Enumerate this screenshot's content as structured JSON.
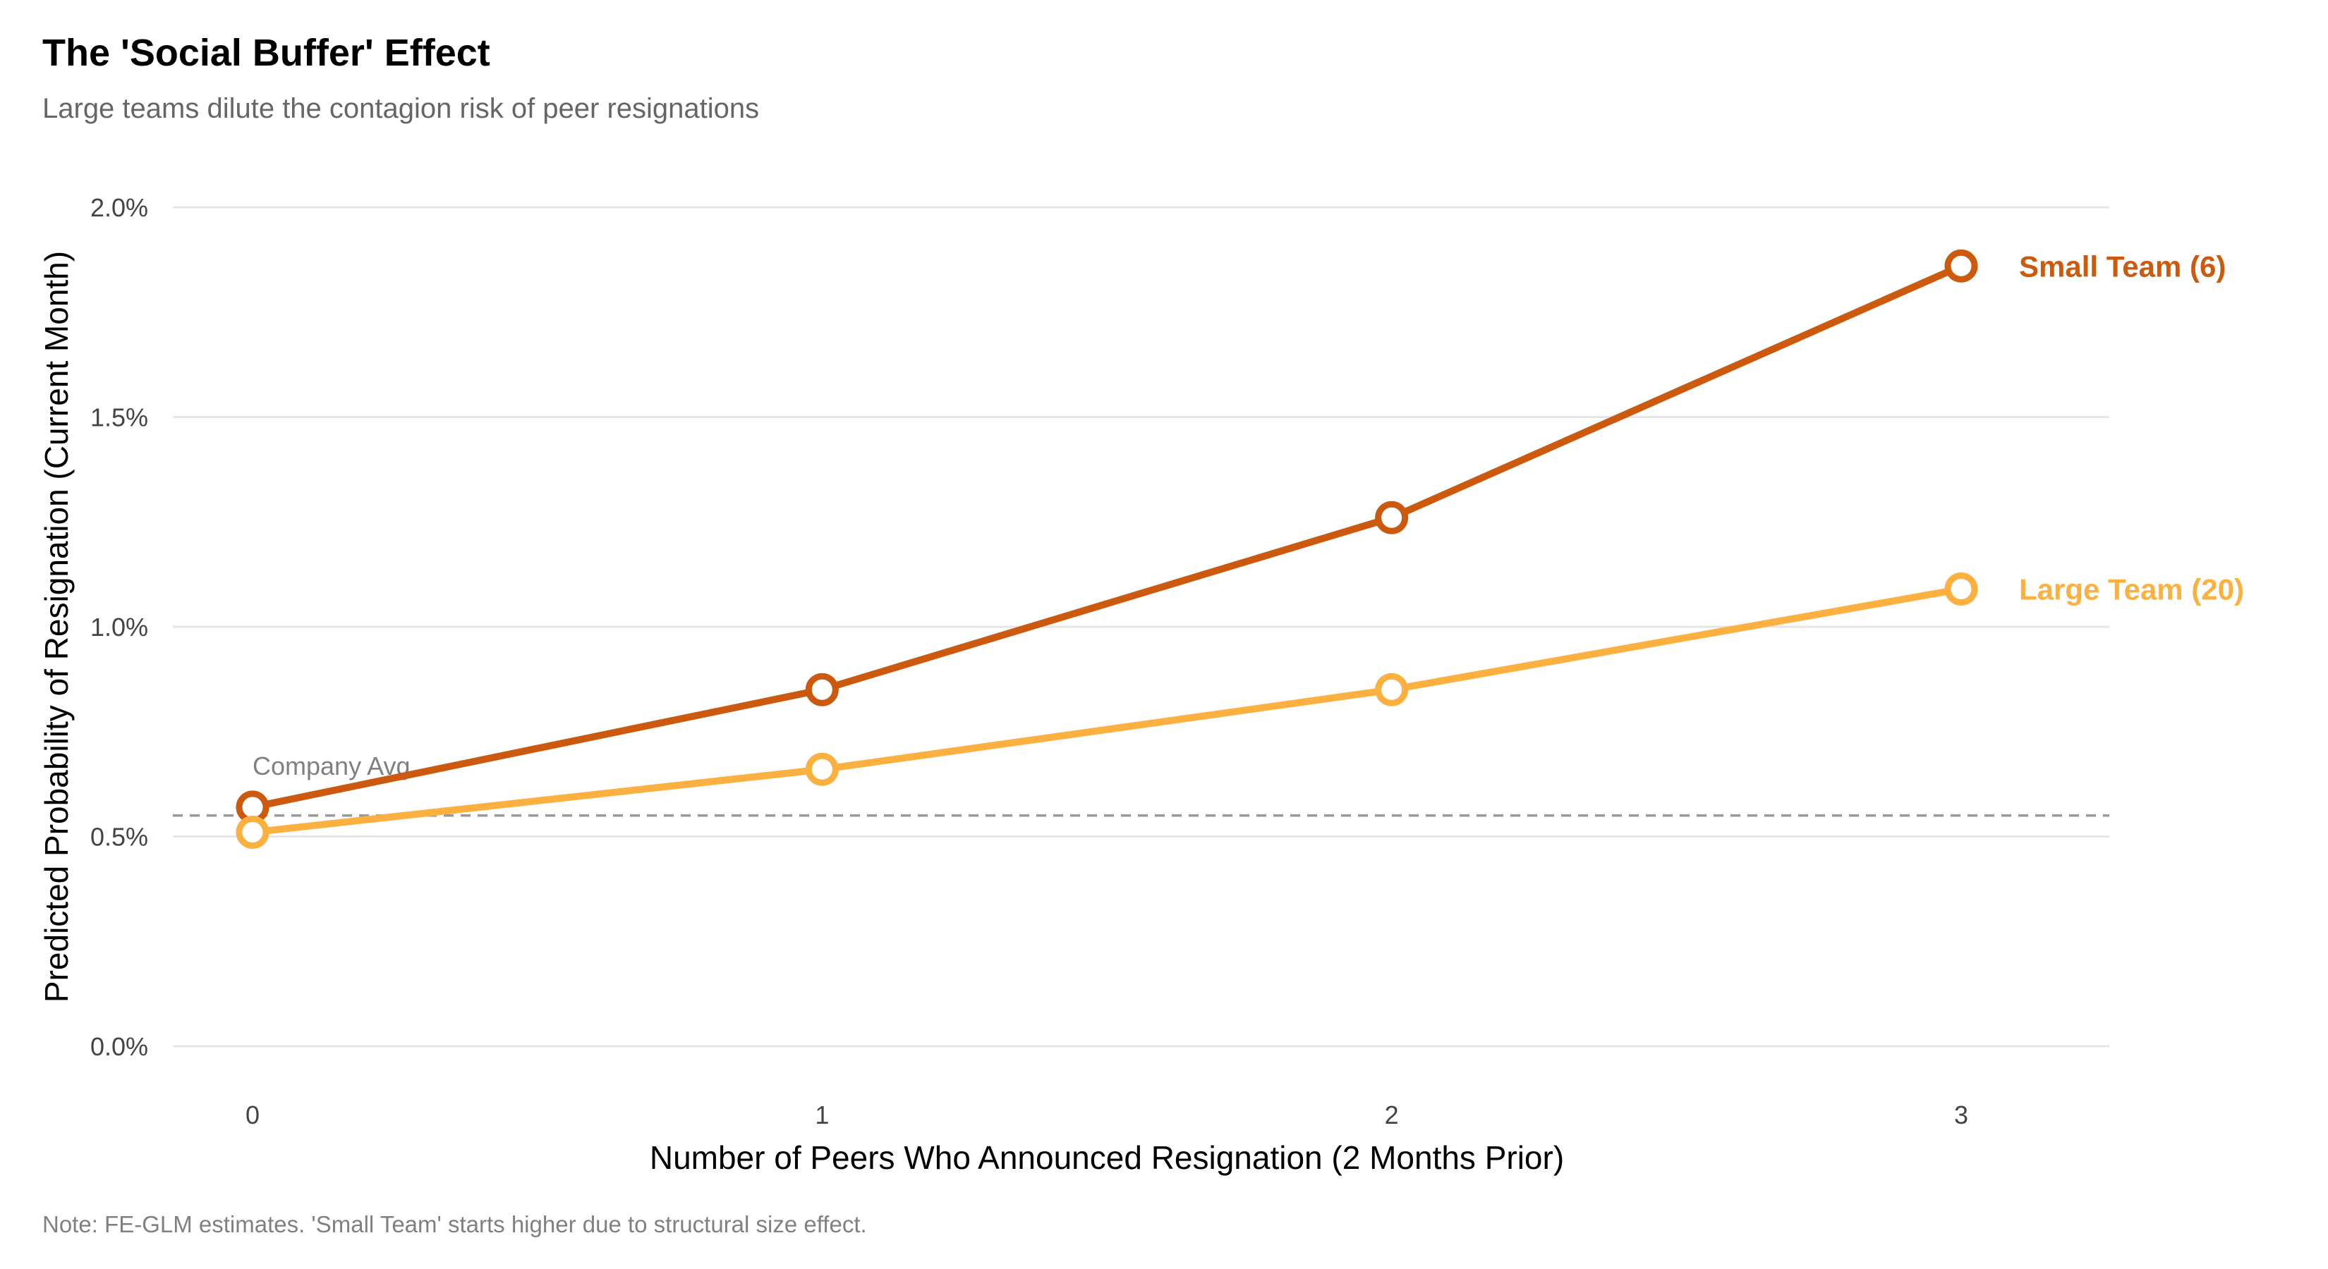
{
  "chart_data": {
    "type": "line",
    "title": "The 'Social Buffer' Effect",
    "subtitle": "Large teams dilute the contagion risk of peer resignations",
    "xlabel": "Number of Peers Who Announced Resignation (2 Months Prior)",
    "ylabel": "Predicted Probability of Resignation (Current Month)",
    "note": "Note: FE-GLM estimates. 'Small Team' starts higher due to structural size effect.",
    "x": [
      0,
      1,
      2,
      3
    ],
    "x_tick_labels": [
      "0",
      "1",
      "2",
      "3"
    ],
    "ylim": [
      0.0,
      2.0
    ],
    "y_ticks": [
      0.0,
      0.5,
      1.0,
      1.5,
      2.0
    ],
    "y_tick_labels": [
      "0.0%",
      "0.5%",
      "1.0%",
      "1.5%",
      "2.0%"
    ],
    "grid": "horizontal",
    "reference_line": {
      "label": "Company Avg.",
      "value": 0.55,
      "color": "#999999"
    },
    "series": [
      {
        "name": "Small Team (6)",
        "values": [
          0.57,
          0.85,
          1.26,
          1.86
        ],
        "color": "#CC5A0E"
      },
      {
        "name": "Large Team (20)",
        "values": [
          0.51,
          0.66,
          0.85,
          1.09
        ],
        "color": "#FBB040"
      }
    ]
  }
}
